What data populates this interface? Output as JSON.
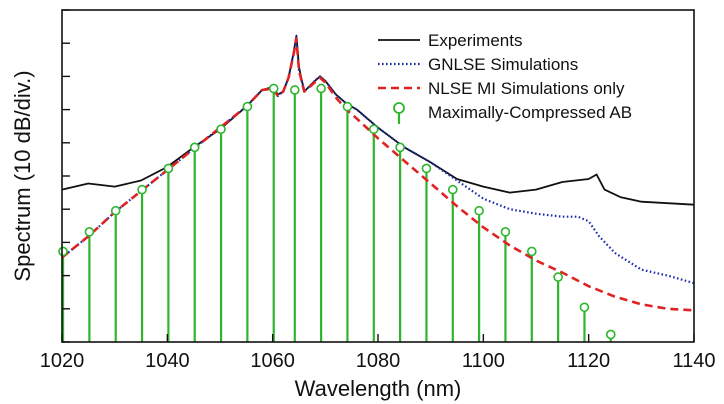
{
  "chart_data": {
    "type": "line",
    "title": "",
    "xlabel": "Wavelength (nm)",
    "ylabel": "Spectrum (10 dB/div.)",
    "xlim": [
      1020,
      1140
    ],
    "ylim": [
      -7,
      4
    ],
    "x_ticks": [
      "1020",
      "1040",
      "1060",
      "1080",
      "1100",
      "1120",
      "1140"
    ],
    "y_tick_count": 11,
    "grid": false,
    "legend_position": "top-right",
    "series": [
      {
        "name": "Experiments",
        "style": "solid",
        "color": "#111111",
        "x": [
          1020,
          1025,
          1030,
          1035,
          1040,
          1045,
          1050,
          1055,
          1058,
          1060,
          1061,
          1062,
          1063,
          1064,
          1064.5,
          1065,
          1066,
          1068,
          1069,
          1070,
          1072,
          1074,
          1076,
          1080,
          1085,
          1090,
          1095,
          1100,
          1105,
          1110,
          1115,
          1120,
          1121.5,
          1123,
          1126,
          1130,
          1135,
          1140
        ],
        "y": [
          -1.95,
          -1.75,
          -1.85,
          -1.65,
          -1.2,
          -0.55,
          0.05,
          0.8,
          1.35,
          1.45,
          1.2,
          1.3,
          1.75,
          2.6,
          3.15,
          2.1,
          1.3,
          1.65,
          1.8,
          1.65,
          1.2,
          0.9,
          0.7,
          0.1,
          -0.55,
          -1.05,
          -1.6,
          -1.85,
          -2.05,
          -1.95,
          -1.7,
          -1.6,
          -1.45,
          -1.95,
          -2.2,
          -2.35,
          -2.4,
          -2.45
        ]
      },
      {
        "name": "GNLSE Simulations",
        "style": "dotted",
        "color": "#1c2ea8",
        "x": [
          1020,
          1025,
          1030,
          1035,
          1040,
          1045,
          1050,
          1055,
          1058,
          1060,
          1061,
          1062,
          1063,
          1064,
          1064.5,
          1065,
          1066,
          1068,
          1069,
          1070,
          1072,
          1074,
          1076,
          1080,
          1085,
          1090,
          1095,
          1100,
          1105,
          1110,
          1115,
          1118,
          1120,
          1122,
          1125,
          1130,
          1135,
          1140
        ],
        "y": [
          -4.2,
          -3.5,
          -2.7,
          -2.0,
          -1.3,
          -0.6,
          0.1,
          0.8,
          1.35,
          1.4,
          1.15,
          1.3,
          1.75,
          2.6,
          3.1,
          2.0,
          1.3,
          1.65,
          1.8,
          1.65,
          1.2,
          0.9,
          0.7,
          0.1,
          -0.55,
          -1.05,
          -1.65,
          -2.25,
          -2.6,
          -2.75,
          -2.85,
          -2.85,
          -3.0,
          -3.5,
          -4.05,
          -4.6,
          -4.8,
          -5.05
        ]
      },
      {
        "name": "NLSE MI Simulations only",
        "style": "dashed",
        "color": "#e02222",
        "x": [
          1020,
          1025,
          1030,
          1035,
          1040,
          1045,
          1050,
          1055,
          1058,
          1060,
          1061,
          1062,
          1063,
          1064,
          1064.5,
          1065,
          1066,
          1068,
          1069,
          1070,
          1072,
          1074,
          1076,
          1080,
          1085,
          1090,
          1095,
          1100,
          1105,
          1110,
          1115,
          1120,
          1125,
          1130,
          1135,
          1140
        ],
        "y": [
          -4.2,
          -3.5,
          -2.7,
          -2.0,
          -1.3,
          -0.6,
          0.1,
          0.8,
          1.35,
          1.4,
          1.15,
          1.3,
          1.75,
          2.55,
          3.05,
          2.0,
          1.3,
          1.6,
          1.75,
          1.6,
          1.1,
          0.7,
          0.4,
          -0.25,
          -1.0,
          -1.75,
          -2.5,
          -3.2,
          -3.8,
          -4.3,
          -4.7,
          -5.15,
          -5.5,
          -5.75,
          -5.9,
          -5.95
        ]
      }
    ],
    "stems": {
      "name": "Maximally-Compressed AB",
      "color": "#2db52d",
      "marker": "open-circle",
      "x": [
        1020.2,
        1025.2,
        1030.2,
        1035.2,
        1040.2,
        1045.2,
        1050.2,
        1055.2,
        1060.2,
        1064.2,
        1069.2,
        1074.2,
        1079.2,
        1084.2,
        1089.2,
        1094.2,
        1099.2,
        1104.2,
        1109.2,
        1114.2,
        1119.2,
        1124.2
      ],
      "y": [
        -4.0,
        -3.35,
        -2.65,
        -1.95,
        -1.25,
        -0.55,
        0.05,
        0.8,
        1.4,
        1.35,
        1.4,
        0.8,
        0.05,
        -0.55,
        -1.25,
        -1.95,
        -2.65,
        -3.35,
        -4.0,
        -4.85,
        -5.85,
        -6.75
      ]
    }
  }
}
